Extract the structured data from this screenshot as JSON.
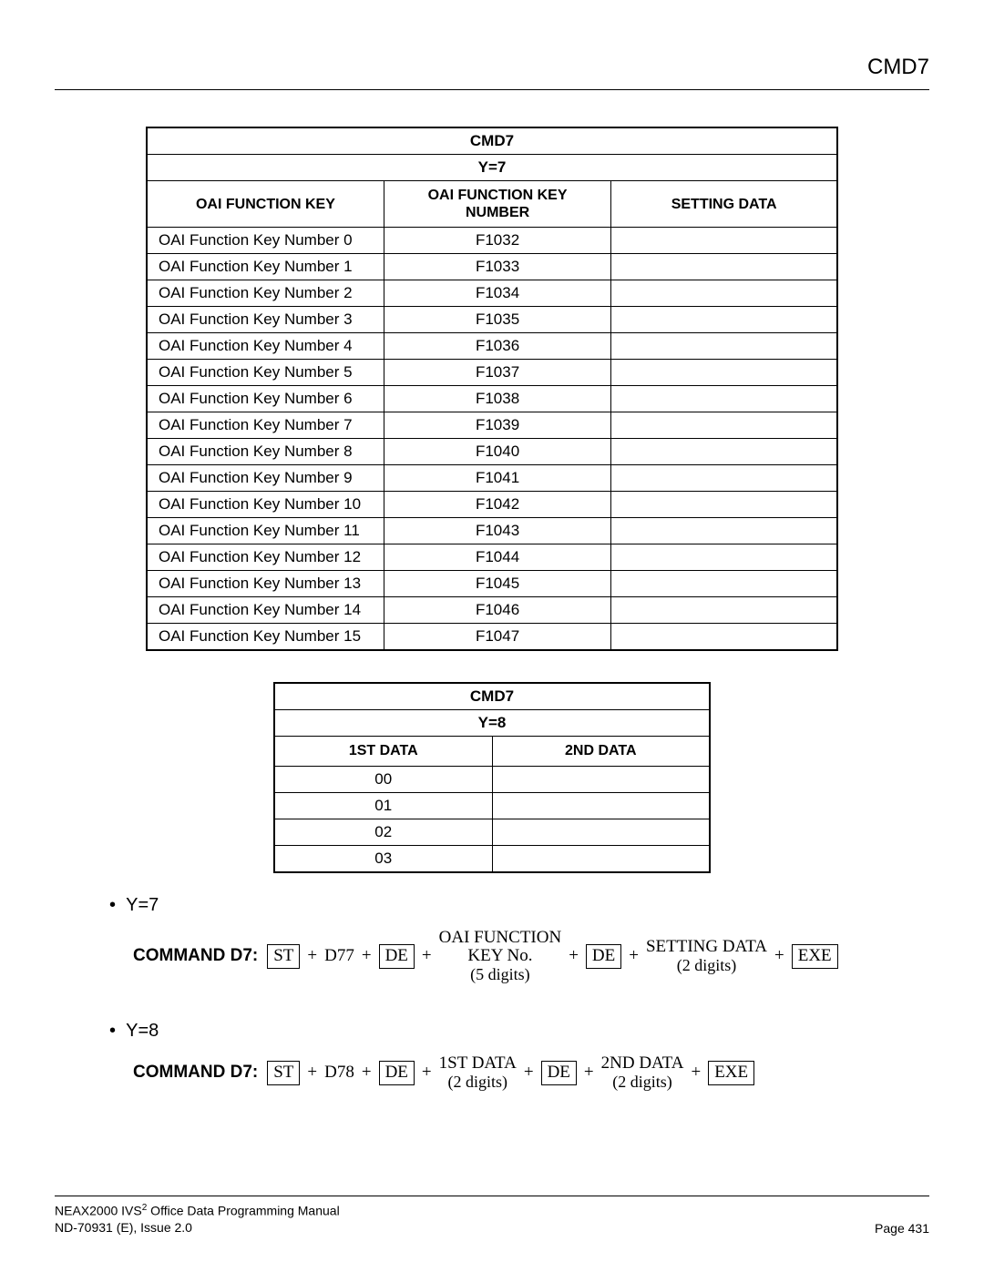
{
  "header": {
    "title": "CMD7"
  },
  "table1": {
    "title": "CMD7",
    "subtitle": "Y=7",
    "columns": [
      "OAI FUNCTION KEY",
      "OAI FUNCTION KEY NUMBER",
      "SETTING DATA"
    ],
    "rows": [
      [
        "OAI Function Key Number 0",
        "F1032",
        ""
      ],
      [
        "OAI Function Key Number 1",
        "F1033",
        ""
      ],
      [
        "OAI Function Key Number 2",
        "F1034",
        ""
      ],
      [
        "OAI Function Key Number 3",
        "F1035",
        ""
      ],
      [
        "OAI Function Key Number 4",
        "F1036",
        ""
      ],
      [
        "OAI Function Key Number 5",
        "F1037",
        ""
      ],
      [
        "OAI Function Key Number 6",
        "F1038",
        ""
      ],
      [
        "OAI Function Key Number 7",
        "F1039",
        ""
      ],
      [
        "OAI Function Key Number 8",
        "F1040",
        ""
      ],
      [
        "OAI Function Key Number 9",
        "F1041",
        ""
      ],
      [
        "OAI Function Key Number 10",
        "F1042",
        ""
      ],
      [
        "OAI Function Key Number 11",
        "F1043",
        ""
      ],
      [
        "OAI Function Key Number 12",
        "F1044",
        ""
      ],
      [
        "OAI Function Key Number 13",
        "F1045",
        ""
      ],
      [
        "OAI Function Key Number 14",
        "F1046",
        ""
      ],
      [
        "OAI Function Key Number 15",
        "F1047",
        ""
      ]
    ]
  },
  "table2": {
    "title": "CMD7",
    "subtitle": "Y=8",
    "columns": [
      "1ST DATA",
      "2ND DATA"
    ],
    "rows": [
      [
        "00",
        ""
      ],
      [
        "01",
        ""
      ],
      [
        "02",
        ""
      ],
      [
        "03",
        ""
      ]
    ]
  },
  "commands": {
    "y7": {
      "bullet": "Y=7",
      "label": "COMMAND D7:",
      "seq": {
        "st": "ST",
        "d": "D77",
        "de": "DE",
        "field1_l1": "OAI FUNCTION",
        "field1_l2": "KEY No.",
        "field1_l3": "(5 digits)",
        "field2_l1": "SETTING DATA",
        "field2_l2": "(2 digits)",
        "exe": "EXE"
      }
    },
    "y8": {
      "bullet": "Y=8",
      "label": "COMMAND D7:",
      "seq": {
        "st": "ST",
        "d": "D78",
        "de": "DE",
        "field1_l1": "1ST DATA",
        "field1_l2": "(2 digits)",
        "field2_l1": "2ND DATA",
        "field2_l2": "(2 digits)",
        "exe": "EXE"
      }
    }
  },
  "footer": {
    "line1a": "NEAX2000 IVS",
    "line1sup": "2",
    "line1b": " Office Data Programming Manual",
    "line2": "ND-70931 (E), Issue 2.0",
    "page": "Page 431"
  }
}
